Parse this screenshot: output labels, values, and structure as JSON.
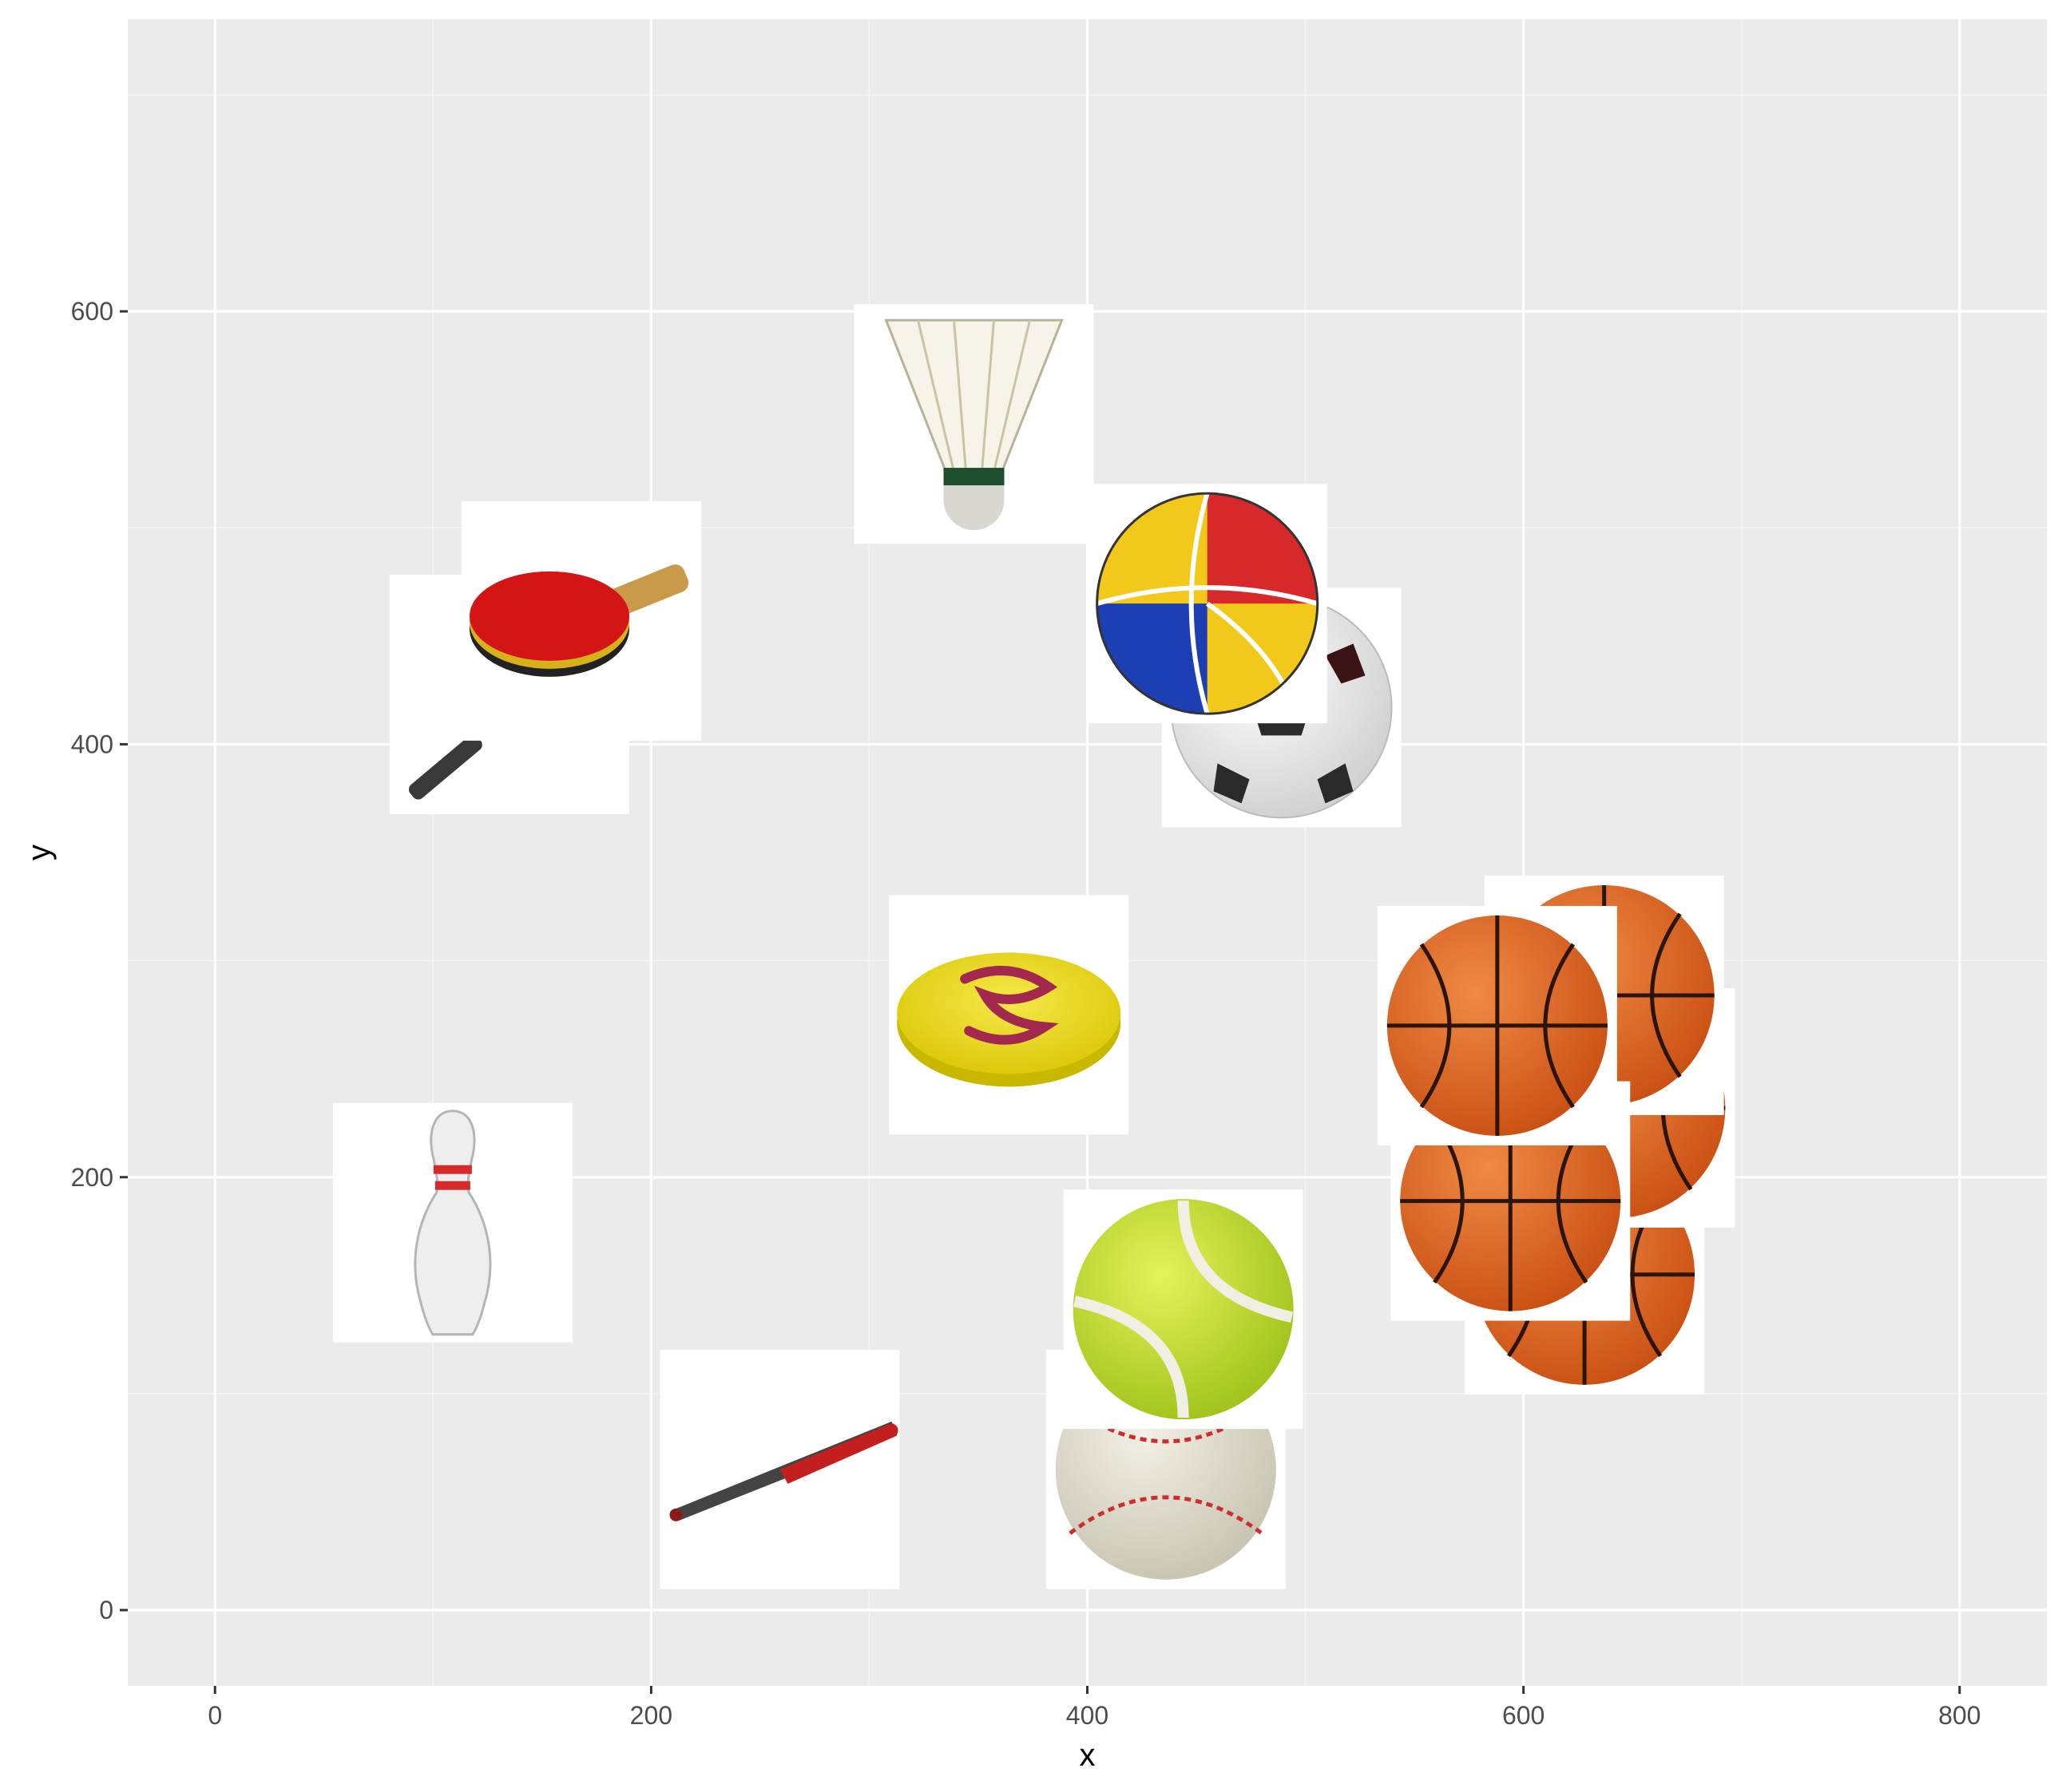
{
  "chart_data": {
    "type": "scatter",
    "xlabel": "x",
    "ylabel": "y",
    "xlim": [
      -40,
      840
    ],
    "ylim": [
      -35,
      735
    ],
    "xticks": [
      0,
      200,
      400,
      600,
      800
    ],
    "yticks": [
      0,
      200,
      400,
      600
    ],
    "grid": true,
    "marker": "image",
    "points": [
      {
        "x": 135,
        "y": 423,
        "icon": "tennis-racket-icon"
      },
      {
        "x": 168,
        "y": 457,
        "icon": "ping-pong-paddle-icon"
      },
      {
        "x": 348,
        "y": 548,
        "icon": "shuttlecock-icon"
      },
      {
        "x": 489,
        "y": 417,
        "icon": "soccer-ball-icon"
      },
      {
        "x": 455,
        "y": 465,
        "icon": "volleyball-icon"
      },
      {
        "x": 364,
        "y": 275,
        "icon": "frisbee-icon"
      },
      {
        "x": 109,
        "y": 179,
        "icon": "bowling-pin-icon"
      },
      {
        "x": 259,
        "y": 65,
        "icon": "baseball-bat-icon"
      },
      {
        "x": 436,
        "y": 65,
        "icon": "baseball-icon"
      },
      {
        "x": 444,
        "y": 139,
        "icon": "tennis-ball-icon"
      },
      {
        "x": 628,
        "y": 155,
        "icon": "basketball-icon"
      },
      {
        "x": 642,
        "y": 232,
        "icon": "basketball-icon"
      },
      {
        "x": 637,
        "y": 284,
        "icon": "basketball-icon"
      },
      {
        "x": 594,
        "y": 189,
        "icon": "basketball-icon"
      },
      {
        "x": 588,
        "y": 270,
        "icon": "basketball-icon"
      }
    ]
  },
  "colors": {
    "panel_background": "#ebebeb",
    "grid_major": "#ffffff",
    "grid_minor": "#f5f5f5",
    "tick_label": "#4d4d4d",
    "axis_title": "#000000"
  }
}
